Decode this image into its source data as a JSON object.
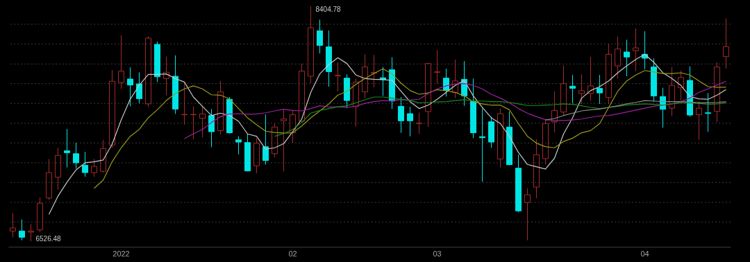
{
  "chart_data": {
    "type": "candlestick",
    "categories": [
      null,
      null,
      null,
      null,
      null,
      null,
      null,
      null,
      null,
      null,
      null,
      null,
      "2022",
      null,
      null,
      null,
      null,
      null,
      null,
      null,
      null,
      null,
      null,
      null,
      null,
      null,
      null,
      null,
      null,
      null,
      null,
      "02",
      null,
      null,
      null,
      null,
      null,
      null,
      null,
      null,
      null,
      null,
      null,
      null,
      null,
      null,
      null,
      "03",
      null,
      null,
      null,
      null,
      null,
      null,
      null,
      null,
      null,
      null,
      null,
      null,
      null,
      null,
      null,
      null,
      null,
      null,
      null,
      null,
      null,
      null,
      "04",
      null,
      null,
      null,
      null,
      null,
      null,
      null,
      null,
      null
    ],
    "ohlc": [
      [
        6608,
        6752,
        6556,
        6632
      ],
      [
        6608,
        6700,
        6534,
        6558
      ],
      [
        6599,
        6663,
        6526.48,
        6608
      ],
      [
        6617,
        6876,
        6599,
        6830
      ],
      [
        6872,
        7184,
        6857,
        7075
      ],
      [
        7038,
        7273,
        6940,
        7212
      ],
      [
        7249,
        7424,
        7116,
        7234
      ],
      [
        7226,
        7313,
        7107,
        7153
      ],
      [
        7134,
        7240,
        7042,
        7075
      ],
      [
        7075,
        7184,
        7042,
        7125
      ],
      [
        7085,
        7337,
        7075,
        7267
      ],
      [
        7295,
        7895,
        7273,
        7805
      ],
      [
        7795,
        8172,
        7744,
        7886
      ],
      [
        7823,
        7916,
        7605,
        7775
      ],
      [
        7784,
        7877,
        7629,
        7666
      ],
      [
        7624,
        8165,
        7601,
        8150
      ],
      [
        8100,
        8122,
        7799,
        7841
      ],
      [
        7827,
        8002,
        7694,
        7877
      ],
      [
        7845,
        8012,
        7544,
        7583
      ],
      [
        7537,
        7799,
        7457,
        7540
      ],
      [
        7537,
        7605,
        7341,
        7540
      ],
      [
        7509,
        7609,
        7356,
        7544
      ],
      [
        7531,
        7583,
        7278,
        7402
      ],
      [
        7411,
        7808,
        7378,
        7720
      ],
      [
        7661,
        7679,
        7387,
        7393
      ],
      [
        7337,
        7365,
        7221,
        7319
      ],
      [
        7315,
        7384,
        7085,
        7088
      ],
      [
        7129,
        7350,
        7070,
        7310
      ],
      [
        7282,
        7541,
        7140,
        7171
      ],
      [
        7226,
        7467,
        7195,
        7439
      ],
      [
        7489,
        7578,
        7085,
        7503
      ],
      [
        7393,
        7568,
        7313,
        7537
      ],
      [
        7485,
        7947,
        7476,
        7886
      ],
      [
        7845,
        8404.78,
        7790,
        8233
      ],
      [
        8209,
        8298,
        8027,
        8091
      ],
      [
        8080,
        8211,
        7762,
        7882
      ],
      [
        7849,
        7956,
        7725,
        7852
      ],
      [
        7830,
        7860,
        7590,
        7651
      ],
      [
        7605,
        7827,
        7442,
        7799
      ],
      [
        7720,
        8021,
        7670,
        7919
      ],
      [
        7869,
        8015,
        7757,
        7875
      ],
      [
        7833,
        7919,
        7688,
        7818
      ],
      [
        7897,
        7997,
        7583,
        7647
      ],
      [
        7605,
        7679,
        7393,
        7489
      ],
      [
        7546,
        7600,
        7365,
        7489
      ],
      [
        7467,
        7555,
        7384,
        7470
      ],
      [
        7563,
        7951,
        7442,
        7947
      ],
      [
        7877,
        8054,
        7786,
        7880
      ],
      [
        7830,
        7905,
        7683,
        7731
      ],
      [
        7716,
        7978,
        7670,
        7808
      ],
      [
        7821,
        7966,
        7609,
        7688
      ],
      [
        7647,
        7827,
        7350,
        7393
      ],
      [
        7362,
        7587,
        7001,
        7354
      ],
      [
        7481,
        7522,
        7273,
        7319
      ],
      [
        7184,
        7587,
        7116,
        7546
      ],
      [
        7439,
        7563,
        7134,
        7138
      ],
      [
        7110,
        7218,
        6759,
        6769
      ],
      [
        6835,
        6949,
        6534,
        6898
      ],
      [
        6959,
        7341,
        6870,
        7218
      ],
      [
        7186,
        7503,
        7143,
        7467
      ],
      [
        7481,
        7725,
        7396,
        7572
      ],
      [
        7559,
        7932,
        7535,
        7786
      ],
      [
        7766,
        7855,
        7628,
        7749
      ],
      [
        7707,
        7860,
        7624,
        7729
      ],
      [
        7707,
        8002,
        7651,
        7768
      ],
      [
        7749,
        7855,
        7624,
        7712
      ],
      [
        7675,
        8104,
        7624,
        8021
      ],
      [
        7928,
        8163,
        7827,
        8063
      ],
      [
        8039,
        8137,
        7845,
        7999
      ],
      [
        8049,
        8228,
        7886,
        8072
      ],
      [
        8021,
        8205,
        7901,
        7989
      ],
      [
        7919,
        7988,
        7642,
        7688
      ],
      [
        7683,
        7753,
        7434,
        7581
      ],
      [
        7590,
        7919,
        7526,
        7772
      ],
      [
        7753,
        7891,
        7651,
        7836
      ],
      [
        7812,
        7925,
        7522,
        7535
      ],
      [
        7537,
        7646,
        7337,
        7590
      ],
      [
        7553,
        7711,
        7402,
        7548
      ],
      [
        7564,
        7956,
        7480,
        7919
      ],
      [
        8002,
        8307,
        7905,
        8082
      ]
    ],
    "colors": [
      "#a52a2a",
      "#00e5e5",
      "#a52a2a",
      "#a52a2a",
      "#a52a2a",
      "#a52a2a",
      "#00e5e5",
      "#00e5e5",
      "#00e5e5",
      "#a52a2a",
      "#a52a2a",
      "#a52a2a",
      "#a52a2a",
      "#00e5e5",
      "#00e5e5",
      "#a52a2a",
      "#00e5e5",
      "#a52a2a",
      "#00e5e5",
      "#a52a2a",
      "#a52a2a",
      "#a52a2a",
      "#00e5e5",
      "#a52a2a",
      "#00e5e5",
      "#00e5e5",
      "#00e5e5",
      "#a52a2a",
      "#00e5e5",
      "#a52a2a",
      "#a52a2a",
      "#a52a2a",
      "#a52a2a",
      "#a52a2a",
      "#00e5e5",
      "#00e5e5",
      "#a52a2a",
      "#00e5e5",
      "#a52a2a",
      "#a52a2a",
      "#a52a2a",
      "#00e5e5",
      "#00e5e5",
      "#00e5e5",
      "#00e5e5",
      "#a52a2a",
      "#a52a2a",
      "#a52a2a",
      "#00e5e5",
      "#a52a2a",
      "#00e5e5",
      "#00e5e5",
      "#00e5e5",
      "#00e5e5",
      "#a52a2a",
      "#00e5e5",
      "#00e5e5",
      "#a52a2a",
      "#a52a2a",
      "#a52a2a",
      "#a52a2a",
      "#a52a2a",
      "#00e5e5",
      "#a52a2a",
      "#a52a2a",
      "#00e5e5",
      "#a52a2a",
      "#a52a2a",
      "#00e5e5",
      "#a52a2a",
      "#00e5e5",
      "#00e5e5",
      "#00e5e5",
      "#a52a2a",
      "#a52a2a",
      "#00e5e5",
      "#a52a2a",
      "#00e5e5",
      "#a52a2a",
      "#a52a2a"
    ],
    "series": [
      {
        "type": "line",
        "color": "#c8c8c8",
        "values": [
          null,
          null,
          null,
          null,
          6741,
          6887,
          6998,
          7097,
          7153,
          7162,
          7175,
          7302,
          7496,
          7662,
          7773,
          7860,
          7860,
          7864,
          7827,
          7799,
          7679,
          7605,
          7531,
          7550,
          7531,
          7485,
          7384,
          7365,
          7263,
          7273,
          7306,
          7402,
          7503,
          7716,
          7864,
          7938,
          7993,
          7947,
          7855,
          7827,
          7821,
          7818,
          7812,
          7725,
          7642,
          7587,
          7614,
          7661,
          7716,
          7772,
          7812,
          7688,
          7596,
          7513,
          7467,
          7365,
          7236,
          7140,
          7121,
          7103,
          7190,
          7384,
          7513,
          7670,
          7731,
          7762,
          7808,
          7873,
          7928,
          7980,
          8021,
          7956,
          7873,
          7827,
          7772,
          7683,
          7664,
          7661,
          7694,
          7738
        ]
      },
      {
        "type": "line",
        "color": "#9a9a1a",
        "values": [
          null,
          null,
          null,
          null,
          null,
          null,
          null,
          null,
          null,
          6949,
          7014,
          7162,
          7273,
          7365,
          7420,
          7513,
          7577,
          7651,
          7707,
          7744,
          7768,
          7744,
          7697,
          7694,
          7664,
          7587,
          7513,
          7457,
          7406,
          7396,
          7391,
          7393,
          7448,
          7513,
          7568,
          7624,
          7694,
          7725,
          7780,
          7827,
          7867,
          7905,
          7864,
          7790,
          7731,
          7701,
          7712,
          7738,
          7729,
          7716,
          7688,
          7642,
          7624,
          7614,
          7614,
          7577,
          7467,
          7365,
          7310,
          7282,
          7273,
          7324,
          7350,
          7393,
          7411,
          7467,
          7596,
          7725,
          7808,
          7855,
          7891,
          7879,
          7867,
          7867,
          7873,
          7855,
          7808,
          7762,
          7757,
          7757
        ]
      },
      {
        "type": "line",
        "color": "#a020a0",
        "values": [
          null,
          null,
          null,
          null,
          null,
          null,
          null,
          null,
          null,
          null,
          null,
          null,
          null,
          null,
          null,
          null,
          null,
          null,
          null,
          7347,
          7385,
          7420,
          7476,
          7522,
          7544,
          7546,
          7541,
          7544,
          7553,
          7568,
          7581,
          7572,
          7568,
          7587,
          7609,
          7600,
          7601,
          7596,
          7605,
          7628,
          7642,
          7651,
          7651,
          7657,
          7655,
          7661,
          7707,
          7744,
          7768,
          7784,
          7786,
          7772,
          7744,
          7701,
          7670,
          7633,
          7587,
          7550,
          7522,
          7498,
          7491,
          7491,
          7495,
          7503,
          7517,
          7528,
          7531,
          7544,
          7559,
          7574,
          7590,
          7605,
          7614,
          7624,
          7642,
          7670,
          7716,
          7744,
          7775,
          7805
        ]
      },
      {
        "type": "line",
        "color": "#1a8a1a",
        "values": [
          null,
          null,
          null,
          null,
          null,
          null,
          null,
          null,
          null,
          null,
          null,
          null,
          null,
          null,
          null,
          null,
          null,
          null,
          null,
          null,
          null,
          null,
          null,
          null,
          null,
          null,
          null,
          null,
          null,
          7365,
          7387,
          7420,
          7476,
          7550,
          7572,
          7587,
          7601,
          7609,
          7633,
          7657,
          7679,
          7679,
          7670,
          7661,
          7651,
          7633,
          7636,
          7639,
          7642,
          7651,
          7657,
          7647,
          7647,
          7642,
          7642,
          7636,
          7624,
          7611,
          7611,
          7614,
          7618,
          7624,
          7620,
          7609,
          7596,
          7587,
          7596,
          7605,
          7614,
          7620,
          7624,
          7620,
          7614,
          7624,
          7633,
          7633,
          7628,
          7620,
          7624,
          7633
        ]
      },
      {
        "type": "line",
        "color": "#8a8a8a",
        "values": [
          null,
          null,
          null,
          null,
          null,
          null,
          null,
          null,
          null,
          null,
          null,
          null,
          null,
          null,
          null,
          null,
          null,
          null,
          null,
          null,
          null,
          null,
          null,
          null,
          null,
          null,
          null,
          null,
          null,
          null,
          null,
          null,
          null,
          null,
          null,
          null,
          null,
          null,
          null,
          null,
          null,
          null,
          null,
          null,
          null,
          null,
          null,
          null,
          null,
          null,
          null,
          null,
          null,
          null,
          null,
          null,
          null,
          null,
          null,
          7495,
          7507,
          7531,
          7550,
          7568,
          7577,
          7583,
          7596,
          7609,
          7624,
          7636,
          7651,
          7647,
          7642,
          7642,
          7642,
          7639,
          7633,
          7633,
          7636,
          7642
        ]
      }
    ],
    "yticks": [
      {
        "value": 8261,
        "label": null
      },
      {
        "value": 8104,
        "label": null
      },
      {
        "value": 7943,
        "label": null
      },
      {
        "value": 7786,
        "label": null
      },
      {
        "value": 7628,
        "label": null
      },
      {
        "value": 7470,
        "label": null
      },
      {
        "value": 7312,
        "label": null
      },
      {
        "value": 7153,
        "label": null
      },
      {
        "value": 6996,
        "label": null
      },
      {
        "value": 6837,
        "label": null
      },
      {
        "value": 6680,
        "label": null
      }
    ],
    "grid": "y",
    "tick_labels": "x",
    "annotations": [
      "8404.78",
      "6526.48"
    ]
  }
}
